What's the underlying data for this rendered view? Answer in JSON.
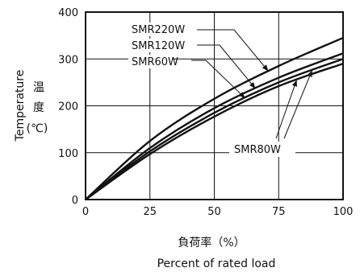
{
  "chart_data": {
    "type": "line",
    "xlabel_jp": "負荷率（%）",
    "xlabel": "Percent of rated load",
    "ylabel": "Temperature",
    "ylabel_jp": [
      "温",
      "度"
    ],
    "ylabel_unit": "(℃)",
    "xlim": [
      0,
      100
    ],
    "ylim": [
      0,
      400
    ],
    "xticks": [
      "0",
      "25",
      "50",
      "75",
      "100"
    ],
    "yticks": [
      "0",
      "100",
      "200",
      "300",
      "400"
    ],
    "grid": true,
    "series": [
      {
        "name": "SMR220W",
        "x": [
          0,
          25,
          50,
          75,
          100
        ],
        "values": [
          0,
          125,
          215,
          285,
          345
        ]
      },
      {
        "name": "SMR120W",
        "x": [
          0,
          25,
          50,
          75,
          100
        ],
        "values": [
          0,
          110,
          195,
          260,
          312
        ]
      },
      {
        "name": "SMR60W",
        "x": [
          0,
          25,
          50,
          75,
          100
        ],
        "values": [
          0,
          103,
          185,
          250,
          300
        ]
      },
      {
        "name": "SMR80W",
        "x": [
          0,
          25,
          50,
          75,
          100
        ],
        "values": [
          0,
          97,
          177,
          242,
          290
        ]
      }
    ]
  }
}
